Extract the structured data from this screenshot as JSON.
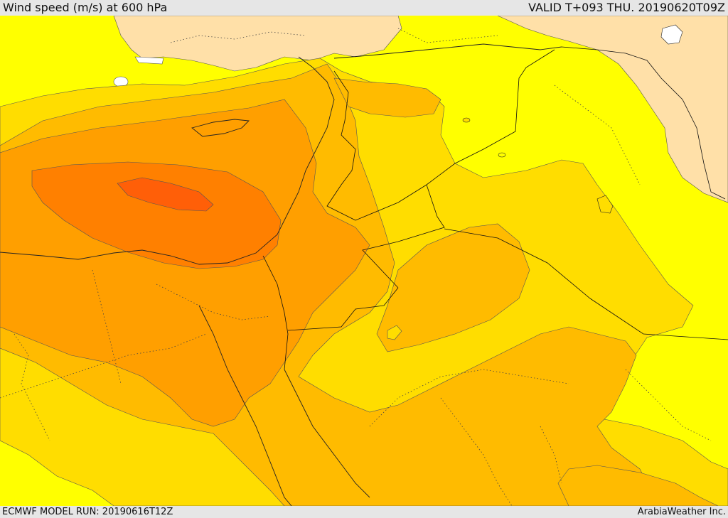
{
  "header": {
    "title": "Wind speed (m/s) at 600 hPa",
    "valid_time": "VALID T+093 THU. 20190620T09Z"
  },
  "footer": {
    "model_run": "ECMWF MODEL RUN: 20190616T12Z",
    "credit": "ArabiaWeather Inc."
  },
  "map": {
    "variable": "wind speed",
    "level": "600 hPa",
    "colors": {
      "lightest": "#ffe0a8",
      "level1": "#ffff00",
      "level2": "#ffdd00",
      "level3": "#ffbb00",
      "level4": "#ff9f00",
      "level5": "#ff8000",
      "level6": "#ff5f08",
      "no_data": "#ffffff"
    }
  }
}
